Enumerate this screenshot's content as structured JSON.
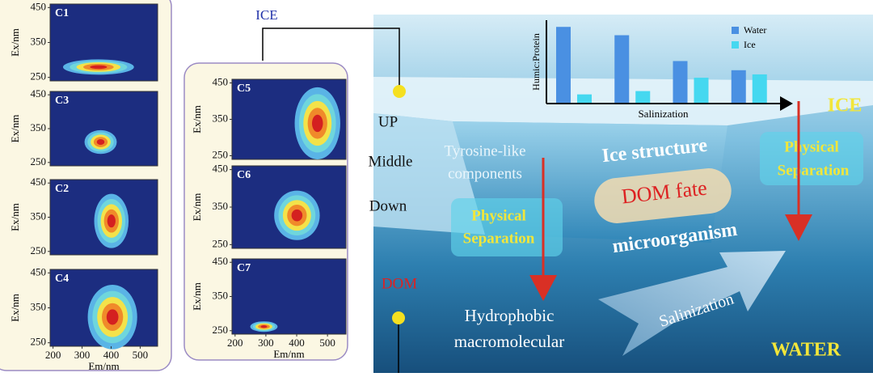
{
  "eem": {
    "ylabel": "Ex/nm",
    "xlabel": "Em/nm",
    "yticks": [
      250,
      350,
      450
    ],
    "xticks": [
      200,
      300,
      400,
      500
    ],
    "ylim": [
      240,
      460
    ],
    "xlim": [
      190,
      560
    ],
    "left_panels": [
      "C1",
      "C3",
      "C2",
      "C4"
    ],
    "right_panels": [
      "C5",
      "C6",
      "C7"
    ]
  },
  "diagram": {
    "ice_label": "ICE",
    "up": "UP",
    "middle": "Middle",
    "down": "Down",
    "dom": "DOM",
    "tyrosine": [
      "Tyrosine-like",
      "components"
    ],
    "ice_structure": "Ice structure",
    "dom_fate": "DOM fate",
    "microorganism": "microorganism",
    "physical_separation": [
      "Physical",
      "Separation"
    ],
    "hydrophobic": [
      "Hydrophobic",
      "macromolecular"
    ],
    "salinization": "Salinization",
    "ice_corner": "ICE",
    "water_corner": "WATER"
  },
  "chart_data": {
    "type": "bar",
    "ylabel": "Humic:Protein",
    "xlabel": "Salinization",
    "categories": [
      null,
      null,
      null,
      null
    ],
    "ylim": [
      0,
      1
    ],
    "series": [
      {
        "name": "Water",
        "color": "#4a90e2",
        "values": [
          0.92,
          0.82,
          0.51,
          0.4
        ]
      },
      {
        "name": "Ice",
        "color": "#45d8f0",
        "values": [
          0.11,
          0.15,
          0.31,
          0.35
        ]
      }
    ]
  }
}
